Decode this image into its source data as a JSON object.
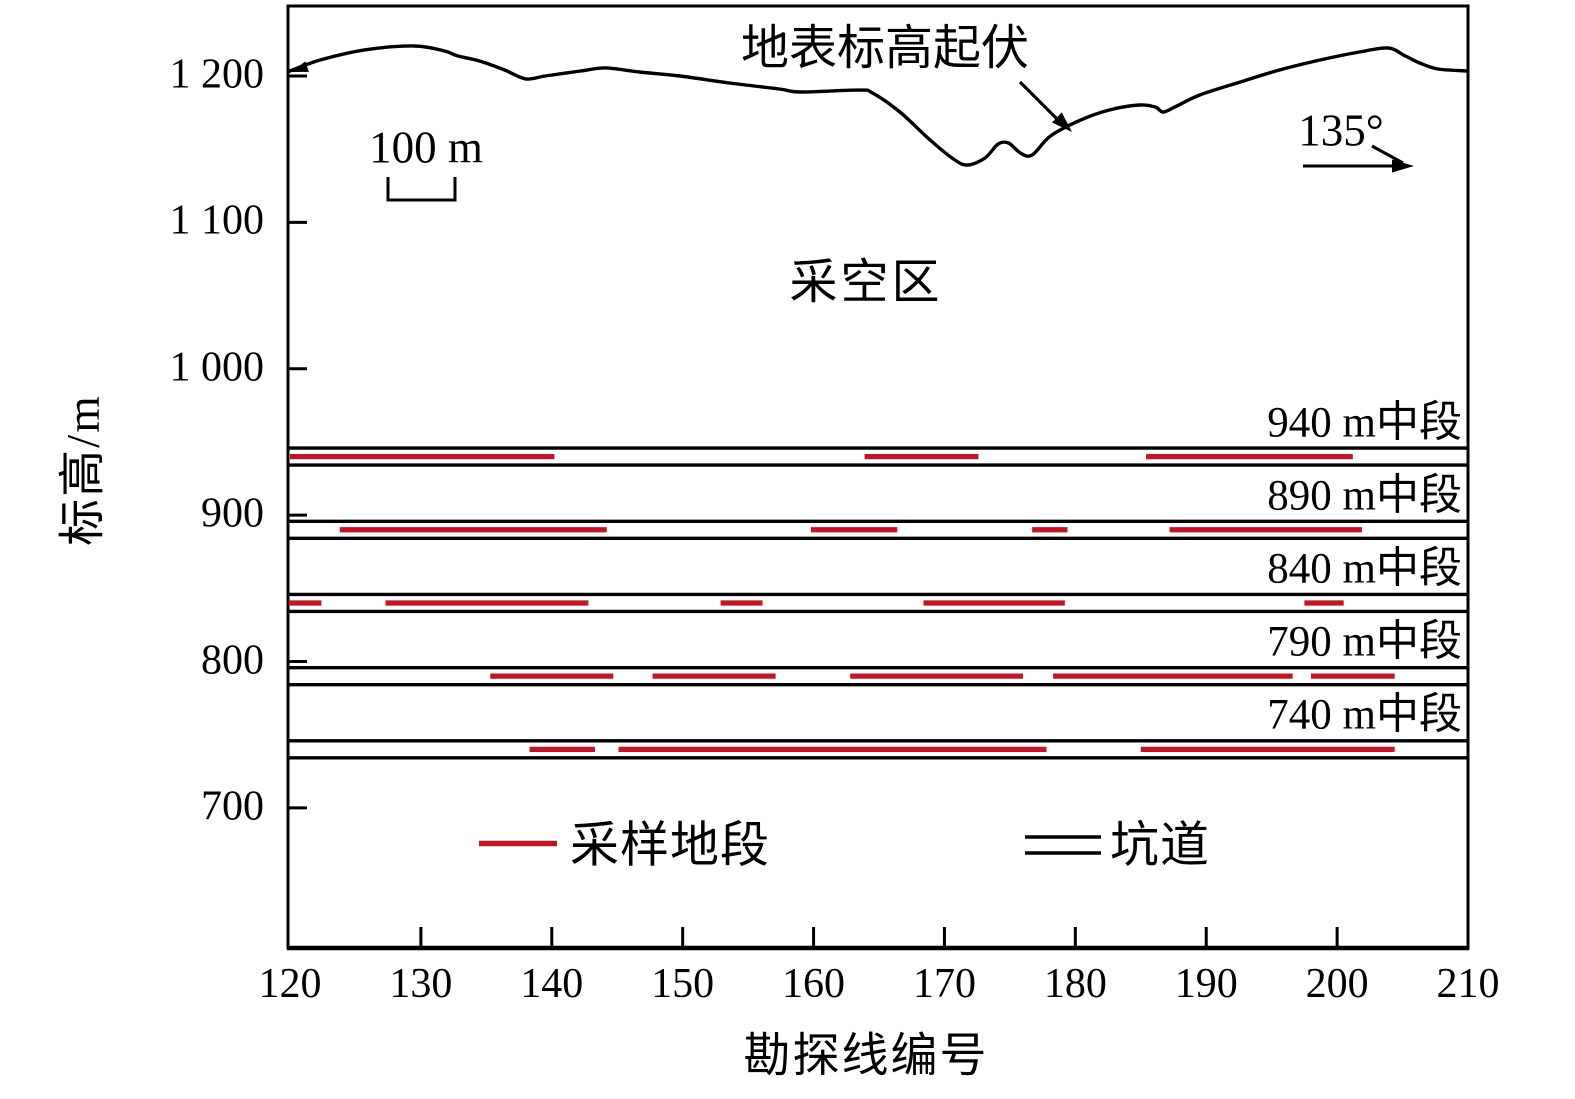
{
  "figure": {
    "background": "#ffffff",
    "line_color": "#000000",
    "sample_color": "#c41425"
  },
  "axes": {
    "y_label": "标高/m",
    "x_label": "勘探线编号",
    "y_ticks": [
      {
        "value": 1200,
        "label": "1 200"
      },
      {
        "value": 1100,
        "label": "1 100"
      },
      {
        "value": 1000,
        "label": "1 000"
      },
      {
        "value": 900,
        "label": "900"
      },
      {
        "value": 800,
        "label": "800"
      },
      {
        "value": 700,
        "label": "700"
      }
    ],
    "x_ticks": [
      {
        "value": 120,
        "label": "120"
      },
      {
        "value": 130,
        "label": "130"
      },
      {
        "value": 140,
        "label": "140"
      },
      {
        "value": 150,
        "label": "150"
      },
      {
        "value": 160,
        "label": "160"
      },
      {
        "value": 170,
        "label": "170"
      },
      {
        "value": 180,
        "label": "180"
      },
      {
        "value": 190,
        "label": "190"
      },
      {
        "value": 200,
        "label": "200"
      },
      {
        "value": 210,
        "label": "210"
      }
    ]
  },
  "annotations": {
    "surface_label": "地表标高起伏",
    "goaf_label": "采空区",
    "scale_bar_label": "100 m",
    "bearing_label": "135°"
  },
  "legend": {
    "sample_label": "采样地段",
    "sample_swatch": "red-line",
    "tunnel_label": "坑道",
    "tunnel_swatch": "double-black-line"
  },
  "chart_data": {
    "type": "line",
    "title": "",
    "xlabel": "勘探线编号",
    "ylabel": "标高/m",
    "xlim": [
      120,
      210
    ],
    "ylim": [
      600,
      1250
    ],
    "grid": false,
    "legend_position": "bottom-inside",
    "surface_profile": {
      "name": "地表标高起伏",
      "points": [
        [
          119.8,
          1202.7
        ],
        [
          122.3,
          1210.9
        ],
        [
          125.7,
          1217.8
        ],
        [
          129.5,
          1220.5
        ],
        [
          131.8,
          1217.1
        ],
        [
          132.8,
          1213.7
        ],
        [
          134.5,
          1210.2
        ],
        [
          136.4,
          1204.1
        ],
        [
          138.0,
          1198.0
        ],
        [
          139.5,
          1200.0
        ],
        [
          142.2,
          1203.4
        ],
        [
          144.1,
          1205.5
        ],
        [
          146.7,
          1202.7
        ],
        [
          149.8,
          1200.0
        ],
        [
          153.6,
          1195.2
        ],
        [
          157.4,
          1191.1
        ],
        [
          159.0,
          1189.1
        ],
        [
          163.5,
          1190.4
        ],
        [
          164.5,
          1188.4
        ],
        [
          166.6,
          1175.4
        ],
        [
          168.9,
          1156.3
        ],
        [
          170.8,
          1142.6
        ],
        [
          171.8,
          1139.2
        ],
        [
          173.1,
          1144.0
        ],
        [
          174.1,
          1153.5
        ],
        [
          174.9,
          1154.2
        ],
        [
          175.8,
          1147.4
        ],
        [
          176.7,
          1146.0
        ],
        [
          178.1,
          1159.0
        ],
        [
          180.4,
          1169.9
        ],
        [
          182.6,
          1176.8
        ],
        [
          184.9,
          1180.2
        ],
        [
          186.1,
          1178.8
        ],
        [
          186.7,
          1175.4
        ],
        [
          187.6,
          1178.8
        ],
        [
          189.5,
          1187.0
        ],
        [
          192.6,
          1195.9
        ],
        [
          195.6,
          1204.1
        ],
        [
          198.7,
          1210.9
        ],
        [
          201.7,
          1216.4
        ],
        [
          203.9,
          1219.1
        ],
        [
          205.2,
          1213.7
        ],
        [
          206.3,
          1208.9
        ],
        [
          207.7,
          1204.8
        ],
        [
          210.0,
          1203.4
        ]
      ]
    },
    "levels": [
      {
        "label": "940 m中段",
        "elevation": 940,
        "sampled_segments": [
          [
            120.0,
            140.2
          ],
          [
            163.9,
            172.6
          ],
          [
            185.4,
            201.2
          ]
        ]
      },
      {
        "label": "890 m中段",
        "elevation": 890,
        "sampled_segments": [
          [
            123.8,
            144.2
          ],
          [
            159.8,
            166.4
          ],
          [
            176.7,
            179.4
          ],
          [
            187.2,
            201.9
          ]
        ]
      },
      {
        "label": "840 m中段",
        "elevation": 840,
        "sampled_segments": [
          [
            119.9,
            122.4
          ],
          [
            127.3,
            142.8
          ],
          [
            152.9,
            156.1
          ],
          [
            168.4,
            179.2
          ],
          [
            197.5,
            200.5
          ]
        ]
      },
      {
        "label": "790 m中段",
        "elevation": 790,
        "sampled_segments": [
          [
            135.3,
            144.7
          ],
          [
            147.7,
            157.1
          ],
          [
            162.8,
            176.0
          ],
          [
            178.3,
            196.6
          ],
          [
            198.0,
            204.4
          ]
        ]
      },
      {
        "label": "740 m中段",
        "elevation": 740,
        "sampled_segments": [
          [
            138.3,
            143.3
          ],
          [
            145.1,
            177.8
          ],
          [
            185.0,
            204.4
          ]
        ]
      }
    ]
  }
}
